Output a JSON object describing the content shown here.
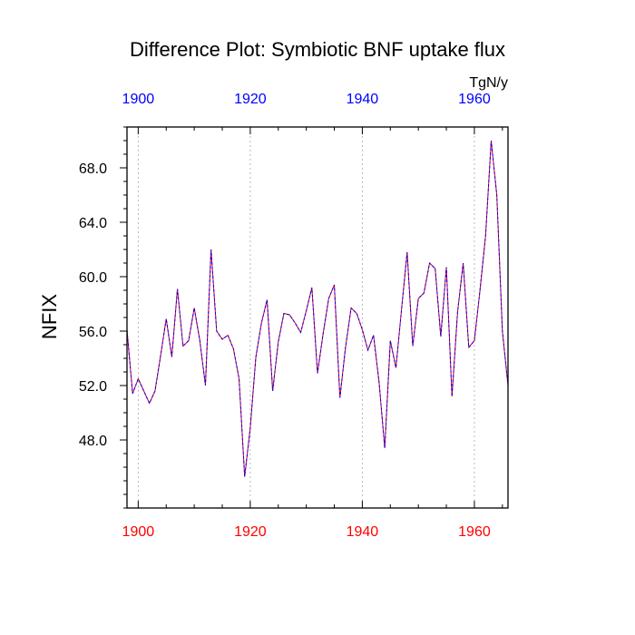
{
  "chart_data": {
    "type": "line",
    "title": "Difference Plot: Symbiotic BNF uptake flux",
    "ylabel": "NFIX",
    "units": "TgN/y",
    "xlim": [
      1898,
      1966
    ],
    "ylim": [
      43.0,
      71.0
    ],
    "x_ticks": [
      1900,
      1920,
      1940,
      1960
    ],
    "x_tick_labels": [
      "1900",
      "1920",
      "1940",
      "1960"
    ],
    "y_ticks": [
      48,
      52,
      56,
      60,
      64,
      68
    ],
    "y_tick_labels": [
      "48.0",
      "52.0",
      "56.0",
      "60.0",
      "64.0",
      "68.0"
    ],
    "colors": {
      "top_axis_labels": "#0000ff",
      "bottom_axis_labels": "#ff0000",
      "series_1": "#ff0000",
      "series_2": "#0000ff",
      "grid": "#aaaaaa"
    },
    "grid": "vertical-dotted",
    "x": [
      1898,
      1899,
      1900,
      1901,
      1902,
      1903,
      1904,
      1905,
      1906,
      1907,
      1908,
      1909,
      1910,
      1911,
      1912,
      1913,
      1914,
      1915,
      1916,
      1917,
      1918,
      1919,
      1920,
      1921,
      1922,
      1923,
      1924,
      1925,
      1926,
      1927,
      1928,
      1929,
      1930,
      1931,
      1932,
      1933,
      1934,
      1935,
      1936,
      1937,
      1938,
      1939,
      1940,
      1941,
      1942,
      1943,
      1944,
      1945,
      1946,
      1947,
      1948,
      1949,
      1950,
      1951,
      1952,
      1953,
      1954,
      1955,
      1956,
      1957,
      1958,
      1959,
      1960,
      1961,
      1962,
      1963,
      1964,
      1965,
      1966
    ],
    "series": [
      {
        "values": [
          56.1,
          51.4,
          52.5,
          51.6,
          50.7,
          51.6,
          54.2,
          56.9,
          54.1,
          59.1,
          54.9,
          55.3,
          57.7,
          55.3,
          52.0,
          62.0,
          56.0,
          55.4,
          55.7,
          54.7,
          52.5,
          45.3,
          48.9,
          54.1,
          56.6,
          58.3,
          51.6,
          55.2,
          57.3,
          57.2,
          56.6,
          55.9,
          57.5,
          59.2,
          52.9,
          55.8,
          58.4,
          59.4,
          51.1,
          54.8,
          57.7,
          57.3,
          56.1,
          54.6,
          55.7,
          52.2,
          47.4,
          55.3,
          53.3,
          57.6,
          61.8,
          54.9,
          58.4,
          58.8,
          61.0,
          60.6,
          55.6,
          60.7,
          51.2,
          57.4,
          61.0,
          54.8,
          55.3,
          59.0,
          63.0,
          70.0,
          66.0,
          56.0,
          52.0
        ]
      },
      {
        "values": [
          56.1,
          51.4,
          52.5,
          51.6,
          50.7,
          51.6,
          54.2,
          56.9,
          54.1,
          59.1,
          54.9,
          55.3,
          57.7,
          55.3,
          52.0,
          62.0,
          56.0,
          55.4,
          55.7,
          54.7,
          52.5,
          45.3,
          48.9,
          54.1,
          56.6,
          58.3,
          51.6,
          55.2,
          57.3,
          57.2,
          56.6,
          55.9,
          57.5,
          59.2,
          52.9,
          55.8,
          58.4,
          59.4,
          51.1,
          54.8,
          57.7,
          57.3,
          56.1,
          54.6,
          55.7,
          52.2,
          47.4,
          55.3,
          53.3,
          57.6,
          61.8,
          54.9,
          58.4,
          58.8,
          61.0,
          60.6,
          55.6,
          60.7,
          51.2,
          57.4,
          61.0,
          54.8,
          55.3,
          59.0,
          63.0,
          70.0,
          66.0,
          56.0,
          52.0
        ]
      }
    ]
  }
}
